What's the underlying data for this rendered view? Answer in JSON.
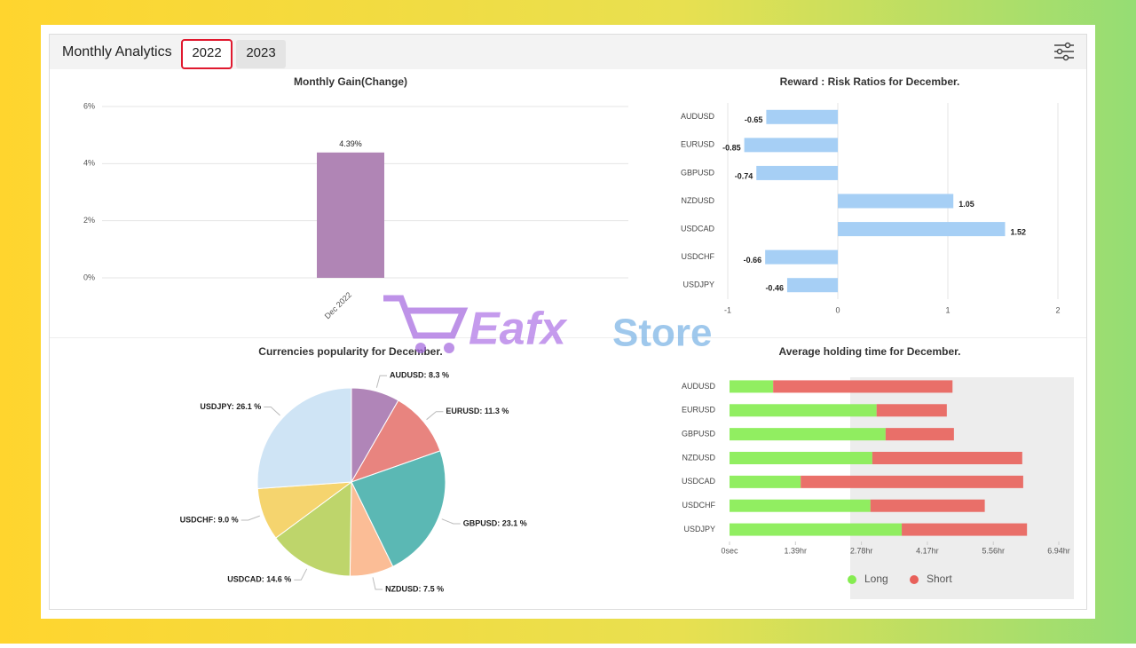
{
  "header": {
    "title": "Monthly Analytics",
    "tabs": [
      "2022",
      "2023"
    ],
    "active_tab": 0
  },
  "watermark": [
    "Eafx",
    "Store"
  ],
  "chart_data": [
    {
      "type": "bar",
      "title": "Monthly Gain(Change)",
      "categories": [
        "Dec 2022"
      ],
      "values": [
        4.39
      ],
      "value_labels": [
        "4.39%"
      ],
      "color": "#b085b5",
      "ylim": [
        0,
        6
      ],
      "yticks": [
        {
          "value": 0,
          "label": "0%"
        },
        {
          "value": 2,
          "label": "2%"
        },
        {
          "value": 4,
          "label": "4%"
        },
        {
          "value": 6,
          "label": "6%"
        }
      ],
      "grid": true
    },
    {
      "type": "hbar",
      "title": "Reward : Risk Ratios for December.",
      "categories": [
        "AUDUSD",
        "EURUSD",
        "GBPUSD",
        "NZDUSD",
        "USDCAD",
        "USDCHF",
        "USDJPY"
      ],
      "values": [
        -0.65,
        -0.85,
        -0.74,
        1.05,
        1.52,
        -0.66,
        -0.46
      ],
      "color": "#a6cff5",
      "xlim": [
        -1,
        2
      ],
      "xticks": [
        -1,
        0,
        1,
        2
      ],
      "grid": true
    },
    {
      "type": "pie",
      "title": "Currencies popularity for December.",
      "labels": [
        "AUDUSD: 8.3 %",
        "EURUSD: 11.3 %",
        "GBPUSD: 23.1 %",
        "NZDUSD: 7.5 %",
        "USDCAD: 14.6 %",
        "USDCHF: 9.0 %",
        "USDJPY: 26.1 %"
      ],
      "values": [
        8.3,
        11.3,
        23.1,
        7.5,
        14.6,
        9.0,
        26.1
      ],
      "colors": [
        "#b085b8",
        "#e8847f",
        "#5bb8b4",
        "#fbbd96",
        "#bed56b",
        "#f5d46e",
        "#cfe4f5"
      ]
    },
    {
      "type": "stacked_hbar",
      "title": "Average holding time for December.",
      "categories": [
        "AUDUSD",
        "EURUSD",
        "GBPUSD",
        "NZDUSD",
        "USDCAD",
        "USDCHF",
        "USDJPY"
      ],
      "series": [
        {
          "name": "Long",
          "color": "#85ec50",
          "values": [
            0.92,
            3.1,
            3.29,
            3.01,
            1.5,
            2.97,
            3.63
          ]
        },
        {
          "name": "Short",
          "color": "#e8605a",
          "values": [
            3.78,
            1.48,
            1.44,
            3.16,
            4.69,
            2.41,
            2.64
          ]
        }
      ],
      "xlim": [
        0,
        6.94
      ],
      "xticks": [
        {
          "value": 0,
          "label": "0sec"
        },
        {
          "value": 1.39,
          "label": "1.39hr"
        },
        {
          "value": 2.78,
          "label": "2.78hr"
        },
        {
          "value": 4.17,
          "label": "4.17hr"
        },
        {
          "value": 5.56,
          "label": "5.56hr"
        },
        {
          "value": 6.94,
          "label": "6.94hr"
        }
      ],
      "legend": "bottom"
    }
  ]
}
